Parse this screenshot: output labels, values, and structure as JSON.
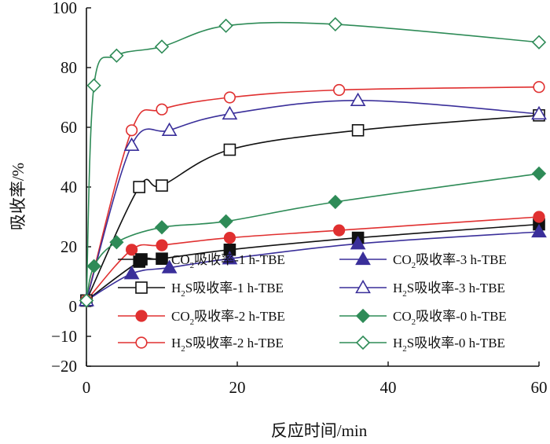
{
  "chart_data": {
    "type": "line",
    "title": "",
    "xlabel": "反应时间/min",
    "ylabel": "吸收率/%",
    "xlim": [
      0,
      60
    ],
    "ylim": [
      -20,
      100
    ],
    "xticks": [
      0,
      20,
      40,
      60
    ],
    "yticks": [
      -20,
      -10,
      0,
      20,
      40,
      60,
      80,
      100
    ],
    "grid": false,
    "legend_position": "bottom-right",
    "series": [
      {
        "name": "CO2吸收率-1 h-TBE",
        "gas": "CO",
        "sub": "2",
        "suffix": "吸收率-1 h-TBE",
        "color": "#111111",
        "marker": "square",
        "filled": true,
        "x": [
          0,
          7,
          10,
          19,
          36,
          60
        ],
        "y": [
          2,
          15,
          16,
          19,
          23,
          27.5
        ]
      },
      {
        "name": "H2S吸收率-1 h-TBE",
        "gas": "H",
        "sub": "2",
        "suffix": "S吸收率-1 h-TBE",
        "color": "#111111",
        "marker": "square",
        "filled": false,
        "x": [
          0,
          7,
          10,
          19,
          36,
          60
        ],
        "y": [
          2,
          40,
          40.5,
          52.5,
          59,
          64
        ]
      },
      {
        "name": "CO2吸收率-2 h-TBE",
        "gas": "CO",
        "sub": "2",
        "suffix": "吸收率-2 h-TBE",
        "color": "#e03030",
        "marker": "circle",
        "filled": true,
        "x": [
          0,
          6,
          10,
          19,
          33.5,
          60
        ],
        "y": [
          2,
          19,
          20.5,
          23,
          25.5,
          30
        ]
      },
      {
        "name": "H2S吸收率-2 h-TBE",
        "gas": "H",
        "sub": "2",
        "suffix": "S吸收率-2 h-TBE",
        "color": "#e03030",
        "marker": "circle",
        "filled": false,
        "x": [
          0,
          6,
          10,
          19,
          33.5,
          60
        ],
        "y": [
          2,
          59,
          66,
          70,
          72.5,
          73.5
        ]
      },
      {
        "name": "CO2吸收率-3 h-TBE",
        "gas": "CO",
        "sub": "2",
        "suffix": "吸收率-3 h-TBE",
        "color": "#3a2f9a",
        "marker": "triangle",
        "filled": true,
        "x": [
          0,
          6,
          11,
          19,
          36,
          60
        ],
        "y": [
          2,
          11,
          13,
          16,
          21,
          25
        ]
      },
      {
        "name": "H2S吸收率-3 h-TBE",
        "gas": "H",
        "sub": "2",
        "suffix": "S吸收率-3 h-TBE",
        "color": "#3a2f9a",
        "marker": "triangle",
        "filled": false,
        "x": [
          0,
          6,
          11,
          19,
          36,
          60
        ],
        "y": [
          2,
          54,
          59,
          64.5,
          69,
          64.5
        ]
      },
      {
        "name": "CO2吸收率-0 h-TBE",
        "gas": "CO",
        "sub": "2",
        "suffix": "吸收率-0 h-TBE",
        "color": "#2e8b57",
        "marker": "diamond",
        "filled": true,
        "x": [
          0,
          1,
          4,
          10,
          18.5,
          33,
          60
        ],
        "y": [
          2,
          13.5,
          21.5,
          26.5,
          28.5,
          35,
          44.5
        ]
      },
      {
        "name": "H2S吸收率-0 h-TBE",
        "gas": "H",
        "sub": "2",
        "suffix": "S吸收率-0 h-TBE",
        "color": "#2e8b57",
        "marker": "diamond",
        "filled": false,
        "x": [
          0,
          1,
          4,
          10,
          18.5,
          33,
          60
        ],
        "y": [
          2,
          74,
          84,
          87,
          94,
          94.5,
          88.5
        ]
      }
    ]
  }
}
